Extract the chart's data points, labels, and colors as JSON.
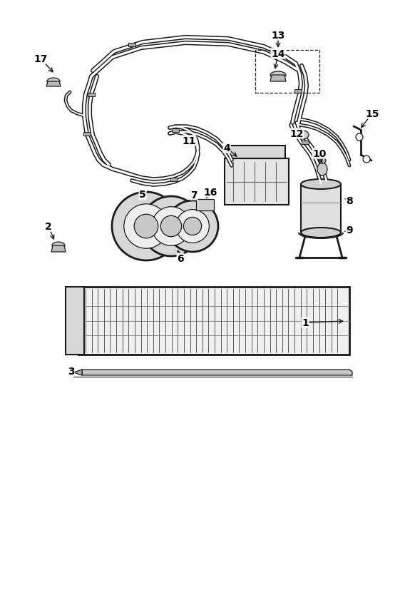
{
  "bg_color": "#ffffff",
  "line_color": "#1a1a1a",
  "fig_width": 5.68,
  "fig_height": 8.28,
  "dpi": 100
}
